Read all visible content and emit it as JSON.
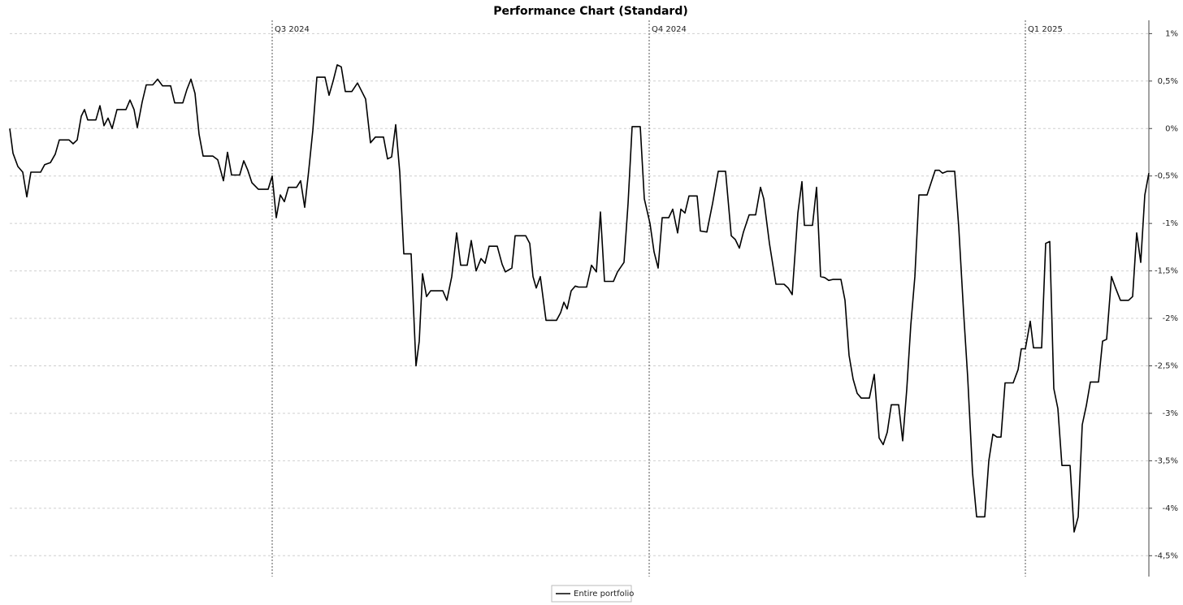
{
  "chart_data": {
    "type": "line",
    "title": "Performance Chart (Standard)",
    "x": [
      0,
      0.8,
      2,
      3.2,
      4.2,
      5.2,
      7.6,
      8.6,
      10,
      11.2,
      12.2,
      14.6,
      15.6,
      16.6,
      17.6,
      18.4,
      19.2,
      21.2,
      22.2,
      23.2,
      24.2,
      25.2,
      26.4,
      28.6,
      29.6,
      30.6,
      31.4,
      32.6,
      33.6,
      35.2,
      36.4,
      37.6,
      39.6,
      40.6,
      42.6,
      43.6,
      44.6,
      45.6,
      46.6,
      47.6,
      50,
      51.2,
      52.6,
      53.6,
      54.6,
      56.6,
      57.6,
      58.6,
      59.6,
      61.2,
      63.6,
      64.6,
      65.6,
      66.6,
      67.6,
      68.6,
      70.6,
      71.6,
      72.6,
      73.6,
      74.6,
      75.6,
      77.6,
      78.6,
      79.6,
      80.6,
      81.6,
      82.6,
      84.2,
      85.6,
      87.6,
      88.8,
      90,
      92,
      93,
      94,
      95,
      96,
      97,
      98.8,
      100,
      100.8,
      101.6,
      102.6,
      103.6,
      106.6,
      107.6,
      108.8,
      110,
      111,
      112.6,
      113.6,
      114.8,
      116,
      117,
      118,
      120,
      121.2,
      122,
      123.6,
      124.4,
      127,
      128,
      128.8,
      129.6,
      130.6,
      132,
      134.6,
      135.6,
      136.4,
      137.2,
      138.2,
      139.2,
      140,
      142,
      143.2,
      144.4,
      145.4,
      146.4,
      148.6,
      149.6,
      151.2,
      152.2,
      153.2,
      155.2,
      156.2,
      157.6,
      158.6,
      159.6,
      160.6,
      162.2,
      163.2,
      164.4,
      165.2,
      166.2,
      167.2,
      169.2,
      170,
      171.6,
      173,
      174.4,
      176.2,
      177.6,
      178.6,
      179.6,
      180.6,
      182,
      183.6,
      184.8,
      185.6,
      187,
      188.6,
      190.6,
      191.6,
      192.6,
      194,
      195,
      195.6,
      197.6,
      198.6,
      199.6,
      200.6,
      201.6,
      202.6,
      204.6,
      205.6,
      206.6,
      207.6,
      208.6,
      209.6,
      211.6,
      212.8,
      214,
      215,
      216,
      217,
      218.8,
      219.8,
      220.8,
      221.8,
      222.8,
      223.8,
      225.8,
      226.8,
      227.8,
      228.8,
      229.6,
      230.8,
      232.6,
      233.6,
      234.8,
      235.8,
      237,
      238,
      240,
      241,
      242,
      243,
      244,
      245,
      247,
      248.2,
      249,
      250,
      251.2,
      252,
      254,
      255,
      256,
      257,
      258,
      259,
      261,
      262,
      263,
      264,
      265,
      266,
      268,
      269,
      270,
      271.2,
      272.2,
      273.4,
      275.4,
      276.4,
      277.4,
      278.4,
      279.4,
      280.4
    ],
    "series": [
      {
        "name": "Entire portfolio",
        "color": "#000000",
        "values": [
          0,
          -0.26,
          -0.4,
          -0.46,
          -0.72,
          -0.46,
          -0.46,
          -0.38,
          -0.36,
          -0.27,
          -0.12,
          -0.12,
          -0.16,
          -0.12,
          0.13,
          0.2,
          0.09,
          0.09,
          0.24,
          0.03,
          0.11,
          0,
          0.2,
          0.2,
          0.3,
          0.2,
          0.01,
          0.28,
          0.46,
          0.46,
          0.52,
          0.45,
          0.45,
          0.27,
          0.27,
          0.41,
          0.52,
          0.37,
          -0.06,
          -0.29,
          -0.29,
          -0.33,
          -0.55,
          -0.25,
          -0.49,
          -0.49,
          -0.34,
          -0.44,
          -0.57,
          -0.64,
          -0.64,
          -0.5,
          -0.94,
          -0.7,
          -0.77,
          -0.62,
          -0.62,
          -0.55,
          -0.83,
          -0.44,
          -0.02,
          0.54,
          0.54,
          0.35,
          0.5,
          0.67,
          0.65,
          0.39,
          0.39,
          0.48,
          0.31,
          -0.15,
          -0.09,
          -0.09,
          -0.32,
          -0.3,
          0.04,
          -0.46,
          -1.32,
          -1.32,
          -2.5,
          -2.24,
          -1.53,
          -1.77,
          -1.71,
          -1.71,
          -1.81,
          -1.56,
          -1.1,
          -1.44,
          -1.44,
          -1.18,
          -1.5,
          -1.37,
          -1.42,
          -1.24,
          -1.24,
          -1.43,
          -1.51,
          -1.47,
          -1.13,
          -1.13,
          -1.21,
          -1.56,
          -1.68,
          -1.56,
          -2.02,
          -2.02,
          -1.94,
          -1.83,
          -1.9,
          -1.71,
          -1.66,
          -1.67,
          -1.67,
          -1.44,
          -1.51,
          -0.88,
          -1.61,
          -1.61,
          -1.51,
          -1.41,
          -0.79,
          0.02,
          0.02,
          -0.74,
          -1,
          -1.3,
          -1.47,
          -0.94,
          -0.94,
          -0.85,
          -1.1,
          -0.85,
          -0.89,
          -0.71,
          -0.71,
          -1.08,
          -1.09,
          -0.79,
          -0.45,
          -0.45,
          -1.13,
          -1.17,
          -1.26,
          -1.09,
          -0.91,
          -0.91,
          -0.62,
          -0.74,
          -1.21,
          -1.64,
          -1.64,
          -1.68,
          -1.75,
          -0.89,
          -0.56,
          -1.02,
          -1.02,
          -0.62,
          -1.56,
          -1.57,
          -1.6,
          -1.59,
          -1.59,
          -1.81,
          -2.39,
          -2.64,
          -2.79,
          -2.84,
          -2.84,
          -2.59,
          -3.26,
          -3.33,
          -3.2,
          -2.91,
          -2.91,
          -3.29,
          -2.75,
          -2.07,
          -1.56,
          -0.7,
          -0.7,
          -0.57,
          -0.44,
          -0.44,
          -0.47,
          -0.45,
          -0.45,
          -1.04,
          -1.94,
          -2.62,
          -3.63,
          -4.09,
          -4.09,
          -3.5,
          -3.22,
          -3.25,
          -3.25,
          -2.68,
          -2.68,
          -2.54,
          -2.32,
          -2.32,
          -2.03,
          -2.31,
          -2.31,
          -1.21,
          -1.19,
          -2.74,
          -2.95,
          -3.55,
          -3.55,
          -4.25,
          -4.09,
          -3.12,
          -2.92,
          -2.67,
          -2.67,
          -2.24,
          -2.22,
          -1.56,
          -1.68,
          -1.81,
          -1.81,
          -1.77,
          -1.1,
          -1.41,
          -0.7,
          -0.47
        ]
      }
    ],
    "xlim": [
      0,
      280.4
    ],
    "ylim": [
      -4.72,
      1.14
    ],
    "yticks": [
      {
        "value": 1,
        "label": "1%"
      },
      {
        "value": 0.5,
        "label": "0,5%"
      },
      {
        "value": 0,
        "label": "0%"
      },
      {
        "value": -0.5,
        "label": "-0,5%"
      },
      {
        "value": -1,
        "label": "-1%"
      },
      {
        "value": -1.5,
        "label": "-1,5%"
      },
      {
        "value": -2,
        "label": "-2%"
      },
      {
        "value": -2.5,
        "label": "-2,5%"
      },
      {
        "value": -3,
        "label": "-3%"
      },
      {
        "value": -3.5,
        "label": "-3,5%"
      },
      {
        "value": -4,
        "label": "-4%"
      },
      {
        "value": -4.5,
        "label": "-4,5%"
      }
    ],
    "quarter_markers": [
      {
        "label": "Q3 2024",
        "x": 64.6
      },
      {
        "label": "Q4 2024",
        "x": 157.4
      },
      {
        "label": "Q1 2025",
        "x": 250
      }
    ],
    "grid": true,
    "legend": "bottom"
  }
}
